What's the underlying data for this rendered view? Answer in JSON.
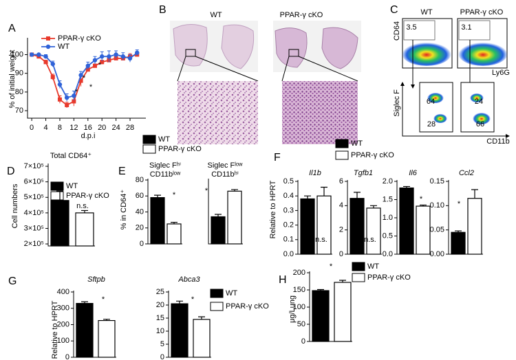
{
  "panel_b": {
    "label": "B",
    "titles": [
      "WT",
      "PPAR-γ cKO"
    ]
  },
  "panel_c": {
    "label": "C",
    "titles": [
      "WT",
      "PPAR-γ cKO"
    ],
    "axis_labels": [
      "CD64",
      "Ly6G",
      "Siglec F",
      "CD11b"
    ],
    "gates": [
      3.5,
      3.1,
      64,
      28,
      24,
      66
    ]
  },
  "chart_data": [
    {
      "type": "line",
      "panel": "A",
      "xlabel": "d.p.i",
      "ylabel": "% of initial weight",
      "x": [
        0,
        2,
        4,
        6,
        8,
        10,
        12,
        14,
        16,
        18,
        20,
        22,
        24,
        26,
        28,
        30
      ],
      "xlim": [
        -1.2,
        32.5
      ],
      "xticks": [
        0,
        4,
        8,
        12,
        16,
        20,
        24,
        28
      ],
      "ylim": [
        66,
        109
      ],
      "yticks": [
        70,
        80,
        90,
        100
      ],
      "series": [
        {
          "name": "PPAR-γ cKO",
          "color": "#e8392b",
          "marker": "square",
          "values": [
            100,
            99,
            96,
            88,
            76,
            73,
            75,
            86,
            92,
            94,
            96,
            97,
            98,
            98,
            99,
            100
          ],
          "errors": [
            0.5,
            0.5,
            1,
            1.5,
            2,
            1.5,
            2.5,
            3,
            1,
            1,
            1,
            1,
            1,
            1,
            1.5,
            1
          ]
        },
        {
          "name": "WT",
          "color": "#2f62d8",
          "marker": "circle",
          "values": [
            100,
            100,
            99,
            95,
            84,
            77,
            78,
            89,
            94,
            97,
            99,
            99,
            100,
            99,
            98,
            101
          ],
          "errors": [
            0.5,
            0.5,
            1,
            1.5,
            2,
            2,
            2.5,
            2,
            2,
            2,
            2.5,
            3,
            2,
            2,
            2,
            1.5
          ]
        }
      ],
      "annotations": [
        "*",
        "*",
        "*",
        "*"
      ]
    },
    {
      "type": "bar",
      "panel": "D",
      "title": "Total CD64⁺",
      "ylabel": "Cell numbers",
      "series": [
        {
          "name": "WT",
          "color": "#000000"
        },
        {
          "name": "PPAR-γ cKO",
          "color": "#ffffff"
        }
      ],
      "groups": [
        {
          "values": [
            480000,
            400000
          ],
          "errors": [
            60000,
            15000
          ],
          "annotation": "n.s.",
          "ylim": [
            187000,
            709000
          ],
          "yticks": [
            {
              "value": 200000,
              "label": "2×10⁵"
            },
            {
              "value": 300000,
              "label": "3×10⁵"
            },
            {
              "value": 400000,
              "label": "4×10⁵"
            },
            {
              "value": 500000,
              "label": "5×10⁵"
            },
            {
              "value": 600000,
              "label": "6×10⁵"
            },
            {
              "value": 700000,
              "label": "7×10⁵"
            }
          ]
        }
      ]
    },
    {
      "type": "bar",
      "panel": "E",
      "ylabel": "% in CD64⁺",
      "series": [
        {
          "name": "WT",
          "color": "#000000"
        },
        {
          "name": "PPAR-γ cKO",
          "color": "#ffffff"
        }
      ],
      "groups": [
        {
          "title": [
            "Siglec Fʰⁱ",
            "CD11bˡᵒʷ"
          ],
          "values": [
            58,
            25
          ],
          "errors": [
            3,
            2
          ],
          "annotation": "*",
          "ylim": [
            0,
            80
          ],
          "yticks": [
            0,
            20,
            40,
            60,
            80
          ]
        },
        {
          "title": [
            "Siglec Fˡᵒʷ",
            "CD11bʰⁱ"
          ],
          "values": [
            34,
            66
          ],
          "errors": [
            3,
            2
          ],
          "annotation": "*",
          "ylim": [
            0,
            80
          ]
        }
      ]
    },
    {
      "type": "bar",
      "panel": "F",
      "ylabel": "Relative to HPRT",
      "title_italic": true,
      "series": [
        {
          "name": "WT",
          "color": "#000000"
        },
        {
          "name": "PPAR-γ cKO",
          "color": "#ffffff"
        }
      ],
      "groups": [
        {
          "title": "Il1b",
          "values": [
            0.38,
            0.4
          ],
          "errors": [
            0.02,
            0.06
          ],
          "annotation": "n.s.",
          "ylim": [
            0,
            0.5
          ],
          "yticks": [
            {
              "value": 0,
              "label": "0.0"
            },
            0.1,
            0.2,
            0.3,
            0.4,
            0.5
          ]
        },
        {
          "title": "Tgfb1",
          "values": [
            4.6,
            3.8
          ],
          "errors": [
            0.5,
            0.2
          ],
          "annotation": "n.s.",
          "ylim": [
            0,
            6
          ],
          "yticks": [
            0,
            2,
            4,
            6
          ]
        },
        {
          "title": "Il6",
          "values": [
            1.82,
            1.32
          ],
          "errors": [
            0.04,
            0.03
          ],
          "annotation": "*",
          "ylim": [
            0,
            2
          ],
          "yticks": [
            {
              "value": 0,
              "label": "0.0"
            },
            0.5,
            {
              "value": 1,
              "label": "1.0"
            },
            1.5,
            {
              "value": 2,
              "label": "2.0"
            }
          ]
        },
        {
          "title": "Ccl2",
          "values": [
            0.045,
            0.115
          ],
          "errors": [
            0.003,
            0.018
          ],
          "annotation": "*",
          "ylim": [
            0,
            0.15
          ],
          "yticks": [
            {
              "value": 0,
              "label": "0.00"
            },
            0.05,
            {
              "value": 0.1,
              "label": "0.10"
            },
            0.15
          ]
        }
      ]
    },
    {
      "type": "bar",
      "panel": "G",
      "ylabel": "Relative to HPRT",
      "title_italic": true,
      "series": [
        {
          "name": "WT",
          "color": "#000000"
        },
        {
          "name": "PPAR-γ cKO",
          "color": "#ffffff"
        }
      ],
      "groups": [
        {
          "title": "Sftpb",
          "values": [
            330,
            225
          ],
          "errors": [
            10,
            8
          ],
          "annotation": "*",
          "ylim": [
            0,
            400
          ],
          "yticks": [
            0,
            100,
            200,
            300,
            400
          ]
        },
        {
          "title": "Abca3",
          "values": [
            20.5,
            14.5
          ],
          "errors": [
            1,
            1
          ],
          "annotation": "*",
          "ylim": [
            0,
            25
          ],
          "yticks": [
            0,
            5,
            10,
            15,
            20,
            25
          ]
        }
      ]
    },
    {
      "type": "bar",
      "panel": "H",
      "ylabel": "μg/Lung",
      "series": [
        {
          "name": "WT",
          "color": "#000000"
        },
        {
          "name": "PPAR-γ cKO",
          "color": "#ffffff"
        }
      ],
      "groups": [
        {
          "values": [
            148,
            172
          ],
          "errors": [
            3,
            6
          ],
          "annotation": "*",
          "ylim": [
            0,
            200
          ],
          "yticks": [
            0,
            50,
            100,
            150,
            200
          ]
        }
      ]
    }
  ]
}
